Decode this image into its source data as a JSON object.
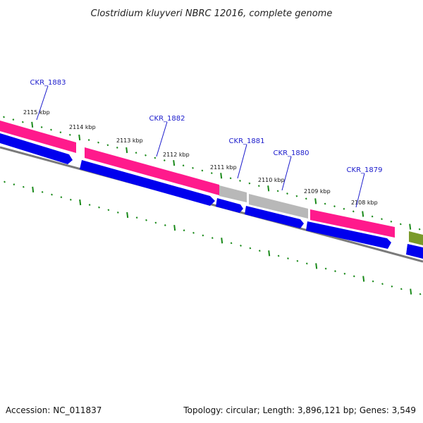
{
  "title": "Clostridium kluyveri NBRC 12016, complete genome",
  "accession": "Accession: NC_011837",
  "summary": "Topology: circular; Length: 3,896,121 bp; Genes: 3,549",
  "colors": {
    "cds_pink": "#ff1a8c",
    "cds_blue": "#0000ee",
    "cds_grey": "#b8b8b8",
    "cds_olive": "#7a9a2a",
    "backbone": "#7a7a7a",
    "ticks": "#1a8a1a",
    "gene_label": "#1a1acc"
  },
  "kbp_labels": [
    "2115 kbp",
    "2114 kbp",
    "2113 kbp",
    "2112 kbp",
    "2111 kbp",
    "2110 kbp",
    "2109 kbp",
    "2108 kbp"
  ],
  "genes": [
    {
      "name": "CKR_1883"
    },
    {
      "name": "CKR_1882"
    },
    {
      "name": "CKR_1881"
    },
    {
      "name": "CKR_1880"
    },
    {
      "name": "CKR_1879"
    }
  ]
}
